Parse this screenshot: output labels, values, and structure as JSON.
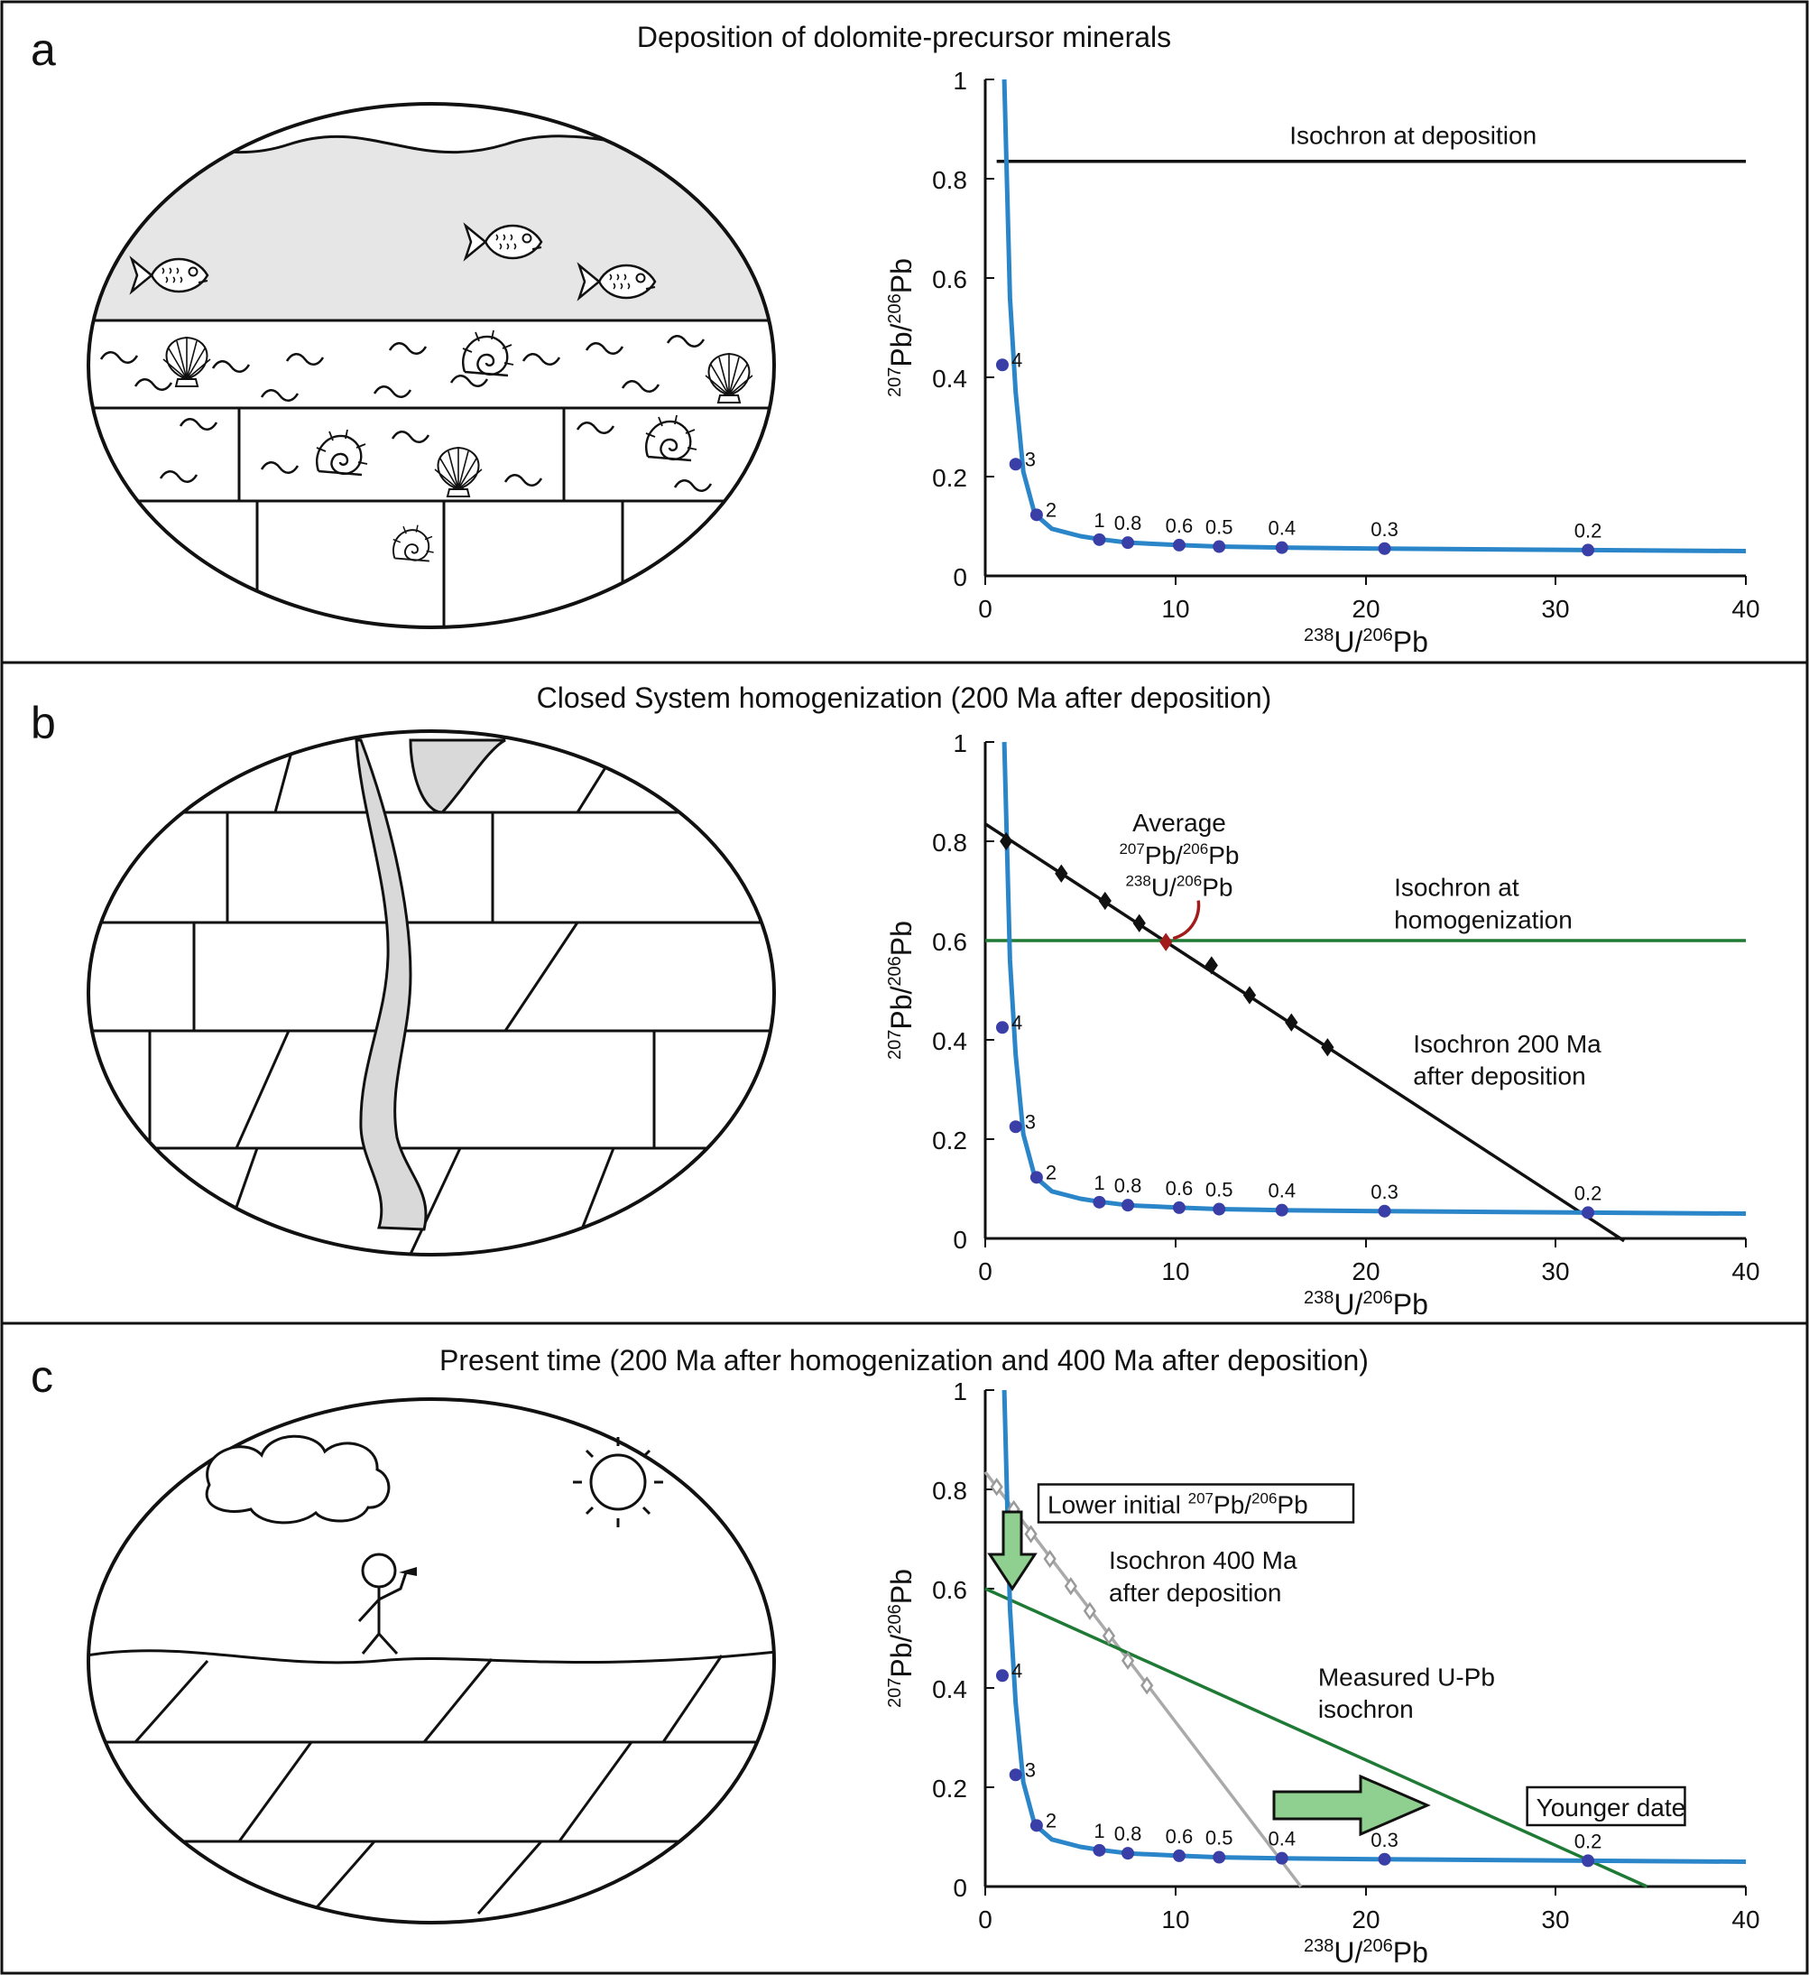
{
  "panels": [
    {
      "letter": "a",
      "title": "Deposition of dolomite-precursor minerals",
      "chart_data": {
        "type": "line",
        "xlabel": "238U/206Pb",
        "ylabel": "207Pb/206Pb",
        "xlim": [
          0,
          40
        ],
        "ylim": [
          0,
          1
        ],
        "xticks": [
          "0",
          "10",
          "20",
          "30",
          "40"
        ],
        "yticks": [
          "0",
          "0.2",
          "0.4",
          "0.6",
          "0.8",
          "1"
        ],
        "concordia": {
          "x": [
            1.0,
            1.3,
            1.6,
            2.0,
            2.6,
            3.5,
            5.0,
            6.0,
            7.5,
            10.2,
            12.3,
            15.6,
            21.0,
            31.7,
            40.0
          ],
          "y": [
            1.0,
            0.56,
            0.37,
            0.21,
            0.125,
            0.095,
            0.08,
            0.074,
            0.067,
            0.062,
            0.059,
            0.057,
            0.055,
            0.052,
            0.05
          ]
        },
        "age_points": [
          {
            "label": "4",
            "x": 0.9,
            "y": 0.425
          },
          {
            "label": "3",
            "x": 1.6,
            "y": 0.225
          },
          {
            "label": "2",
            "x": 2.7,
            "y": 0.123
          },
          {
            "label": "1",
            "x": 6.0,
            "y": 0.073
          },
          {
            "label": "0.8",
            "x": 7.5,
            "y": 0.067
          },
          {
            "label": "0.6",
            "x": 10.2,
            "y": 0.062
          },
          {
            "label": "0.5",
            "x": 12.3,
            "y": 0.059
          },
          {
            "label": "0.4",
            "x": 15.6,
            "y": 0.057
          },
          {
            "label": "0.3",
            "x": 21.0,
            "y": 0.055
          },
          {
            "label": "0.2",
            "x": 31.7,
            "y": 0.052
          }
        ],
        "lines": [
          {
            "name": "Isochron at deposition",
            "x": [
              0.6,
              40
            ],
            "y": [
              0.835,
              0.835
            ],
            "color": "#111111"
          }
        ],
        "annotations": [
          {
            "text": "Isochron at deposition",
            "x": 22.5,
            "y": 0.87,
            "color": "#111111"
          }
        ]
      }
    },
    {
      "letter": "b",
      "title": "Closed System homogenization (200 Ma after deposition)",
      "chart_data": {
        "type": "line",
        "xlabel": "238U/206Pb",
        "ylabel": "207Pb/206Pb",
        "xlim": [
          0,
          40
        ],
        "ylim": [
          0,
          1
        ],
        "xticks": [
          "0",
          "10",
          "20",
          "30",
          "40"
        ],
        "yticks": [
          "0",
          "0.2",
          "0.4",
          "0.6",
          "0.8",
          "1"
        ],
        "concordia": {
          "x": [
            1.0,
            1.3,
            1.6,
            2.0,
            2.6,
            3.5,
            5.0,
            6.0,
            7.5,
            10.2,
            12.3,
            15.6,
            21.0,
            31.7,
            40.0
          ],
          "y": [
            1.0,
            0.56,
            0.37,
            0.21,
            0.125,
            0.095,
            0.08,
            0.074,
            0.067,
            0.062,
            0.059,
            0.057,
            0.055,
            0.052,
            0.05
          ]
        },
        "age_points": [
          {
            "label": "4",
            "x": 0.9,
            "y": 0.425
          },
          {
            "label": "3",
            "x": 1.6,
            "y": 0.225
          },
          {
            "label": "2",
            "x": 2.7,
            "y": 0.123
          },
          {
            "label": "1",
            "x": 6.0,
            "y": 0.073
          },
          {
            "label": "0.8",
            "x": 7.5,
            "y": 0.067
          },
          {
            "label": "0.6",
            "x": 10.2,
            "y": 0.062
          },
          {
            "label": "0.5",
            "x": 12.3,
            "y": 0.059
          },
          {
            "label": "0.4",
            "x": 15.6,
            "y": 0.057
          },
          {
            "label": "0.3",
            "x": 21.0,
            "y": 0.055
          },
          {
            "label": "0.2",
            "x": 31.7,
            "y": 0.052
          }
        ],
        "lines": [
          {
            "name": "Isochron 200 Ma after deposition",
            "x": [
              0,
              33.6
            ],
            "y": [
              0.835,
              -0.005
            ],
            "color": "#111111"
          },
          {
            "name": "Isochron at homogenization",
            "x": [
              0,
              40
            ],
            "y": [
              0.6,
              0.6
            ],
            "color": "#1e7a34"
          }
        ],
        "markers": [
          {
            "shape": "diamond",
            "color": "#111111",
            "x": [
              1.1,
              4.0,
              6.3,
              8.1,
              11.9,
              13.9,
              16.1,
              18.0
            ],
            "y": [
              0.8,
              0.735,
              0.68,
              0.635,
              0.55,
              0.49,
              0.435,
              0.385
            ]
          },
          {
            "shape": "diamond",
            "color": "#a31c1c",
            "x": [
              9.5
            ],
            "y": [
              0.597
            ]
          }
        ],
        "annotations": [
          {
            "text": "Average",
            "x": 10.2,
            "y": 0.82,
            "color": "#a31c1c"
          },
          {
            "text": "207Pb/206Pb",
            "x": 10.2,
            "y": 0.755,
            "color": "#a31c1c"
          },
          {
            "text": "238U/206Pb",
            "x": 10.2,
            "y": 0.69,
            "color": "#a31c1c"
          },
          {
            "text": "Isochron at",
            "x": 21.5,
            "y": 0.69,
            "color": "#1e7a34"
          },
          {
            "text": "homogenization",
            "x": 21.5,
            "y": 0.625,
            "color": "#1e7a34"
          },
          {
            "text": "Isochron 200 Ma",
            "x": 22.5,
            "y": 0.375,
            "color": "#111111"
          },
          {
            "text": "after deposition",
            "x": 22.5,
            "y": 0.31,
            "color": "#111111"
          }
        ]
      }
    },
    {
      "letter": "c",
      "title": "Present time (200 Ma after homogenization and 400 Ma after deposition)",
      "chart_data": {
        "type": "line",
        "xlabel": "238U/206Pb",
        "ylabel": "207Pb/206Pb",
        "xlim": [
          0,
          40
        ],
        "ylim": [
          0,
          1
        ],
        "xticks": [
          "0",
          "10",
          "20",
          "30",
          "40"
        ],
        "yticks": [
          "0",
          "0.2",
          "0.4",
          "0.6",
          "0.8",
          "1"
        ],
        "concordia": {
          "x": [
            1.0,
            1.3,
            1.6,
            2.0,
            2.6,
            3.5,
            5.0,
            6.0,
            7.5,
            10.2,
            12.3,
            15.6,
            21.0,
            31.7,
            40.0
          ],
          "y": [
            1.0,
            0.56,
            0.37,
            0.21,
            0.125,
            0.095,
            0.08,
            0.074,
            0.067,
            0.062,
            0.059,
            0.057,
            0.055,
            0.052,
            0.05
          ]
        },
        "age_points": [
          {
            "label": "4",
            "x": 0.9,
            "y": 0.425
          },
          {
            "label": "3",
            "x": 1.6,
            "y": 0.225
          },
          {
            "label": "2",
            "x": 2.7,
            "y": 0.123
          },
          {
            "label": "1",
            "x": 6.0,
            "y": 0.073
          },
          {
            "label": "0.8",
            "x": 7.5,
            "y": 0.067
          },
          {
            "label": "0.6",
            "x": 10.2,
            "y": 0.062
          },
          {
            "label": "0.5",
            "x": 12.3,
            "y": 0.059
          },
          {
            "label": "0.4",
            "x": 15.6,
            "y": 0.057
          },
          {
            "label": "0.3",
            "x": 21.0,
            "y": 0.055
          },
          {
            "label": "0.2",
            "x": 31.7,
            "y": 0.052
          }
        ],
        "lines": [
          {
            "name": "Isochron 400 Ma after deposition",
            "x": [
              0,
              16.6
            ],
            "y": [
              0.835,
              0.0
            ],
            "color": "#aaaaaa"
          },
          {
            "name": "Measured U-Pb isochron",
            "x": [
              0,
              34.8
            ],
            "y": [
              0.6,
              0.0
            ],
            "color": "#1e7a34"
          }
        ],
        "markers": [
          {
            "shape": "diamond-open",
            "color": "#9a9a9a",
            "x": [
              0.6,
              1.5,
              2.4,
              3.4,
              4.5,
              5.5,
              6.5,
              7.5,
              8.5
            ],
            "y": [
              0.805,
              0.76,
              0.71,
              0.66,
              0.605,
              0.555,
              0.505,
              0.455,
              0.405
            ]
          }
        ],
        "annotations": [
          {
            "text": "Isochron 400 Ma",
            "x": 6.5,
            "y": 0.64,
            "color": "#777777"
          },
          {
            "text": "after deposition",
            "x": 6.5,
            "y": 0.575,
            "color": "#777777"
          },
          {
            "text": "Measured U-Pb",
            "x": 17.5,
            "y": 0.405,
            "color": "#1e7a34"
          },
          {
            "text": "isochron",
            "x": 17.5,
            "y": 0.34,
            "color": "#1e7a34"
          }
        ],
        "callouts": [
          {
            "text": "Lower initial 207Pb/206Pb",
            "x": 2.8,
            "y": 0.77
          },
          {
            "text": "Younger date",
            "x": 28.5,
            "y": 0.16
          }
        ]
      }
    }
  ],
  "colors": {
    "concordia": "#2b86c9",
    "age_dot": "#3a3fa8",
    "isochron_black": "#111111",
    "homogenization_green": "#1e7a34",
    "average_red": "#a31c1c",
    "gray_isochron": "#aaaaaa",
    "arrow_fill": "#8fcf8f",
    "sediment_fill": "#e6e6e6"
  }
}
